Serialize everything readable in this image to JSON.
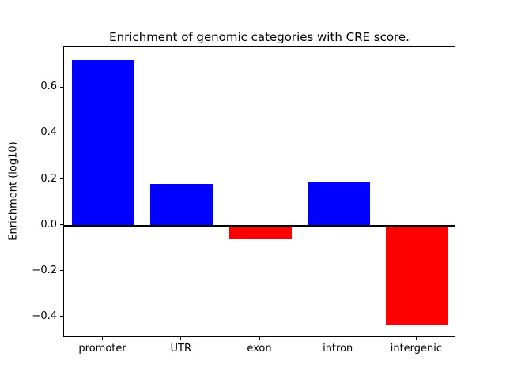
{
  "chart_data": {
    "type": "bar",
    "title": "Enrichment of genomic categories with CRE score.",
    "xlabel": "",
    "ylabel": "Enrichment (log10)",
    "categories": [
      "promoter",
      "UTR",
      "exon",
      "intron",
      "intergenic"
    ],
    "values": [
      0.72,
      0.18,
      -0.06,
      0.19,
      -0.43
    ],
    "bar_colors": [
      "#0000ff",
      "#0000ff",
      "#ff0000",
      "#0000ff",
      "#ff0000"
    ],
    "positive_color": "#0000ff",
    "negative_color": "#ff0000",
    "ylim": [
      -0.49,
      0.78
    ],
    "yticks": [
      -0.4,
      -0.2,
      0.0,
      0.2,
      0.4,
      0.6
    ],
    "ytick_labels": [
      "−0.4",
      "−0.2",
      "0.0",
      "0.2",
      "0.4",
      "0.6"
    ],
    "zero_line": true,
    "grid": false,
    "legend": "none",
    "background_color": "#ffffff"
  }
}
